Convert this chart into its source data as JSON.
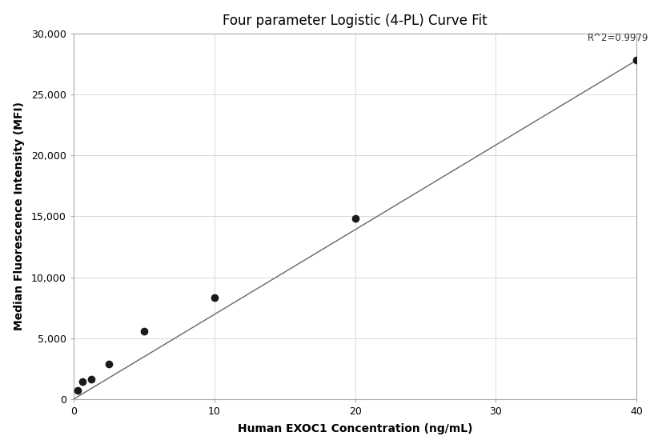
{
  "title": "Four parameter Logistic (4-PL) Curve Fit",
  "xlabel": "Human EXOC1 Concentration (ng/mL)",
  "ylabel": "Median Fluorescence Intensity (MFI)",
  "scatter_x": [
    0.3125,
    0.625,
    1.25,
    2.5,
    5.0,
    10.0,
    20.0,
    40.0
  ],
  "scatter_y": [
    700,
    1450,
    1650,
    2900,
    5600,
    8300,
    14800,
    27800
  ],
  "xlim": [
    0,
    40
  ],
  "ylim": [
    0,
    30000
  ],
  "yticks": [
    0,
    5000,
    10000,
    15000,
    20000,
    25000,
    30000
  ],
  "ytick_labels": [
    "0",
    "5,000",
    "10,000",
    "15,000",
    "20,000",
    "25,000",
    "30,000"
  ],
  "xticks": [
    0,
    10,
    20,
    30,
    40
  ],
  "r2_text": "R^2=0.9979",
  "r2_x": 36.5,
  "r2_y": 29200,
  "scatter_color": "#1a1a1a",
  "line_color": "#666666",
  "grid_color": "#ccdcec",
  "background_color": "#ffffff",
  "title_fontsize": 12,
  "label_fontsize": 10,
  "tick_fontsize": 9,
  "annotation_fontsize": 8.5,
  "marker_size": 7
}
